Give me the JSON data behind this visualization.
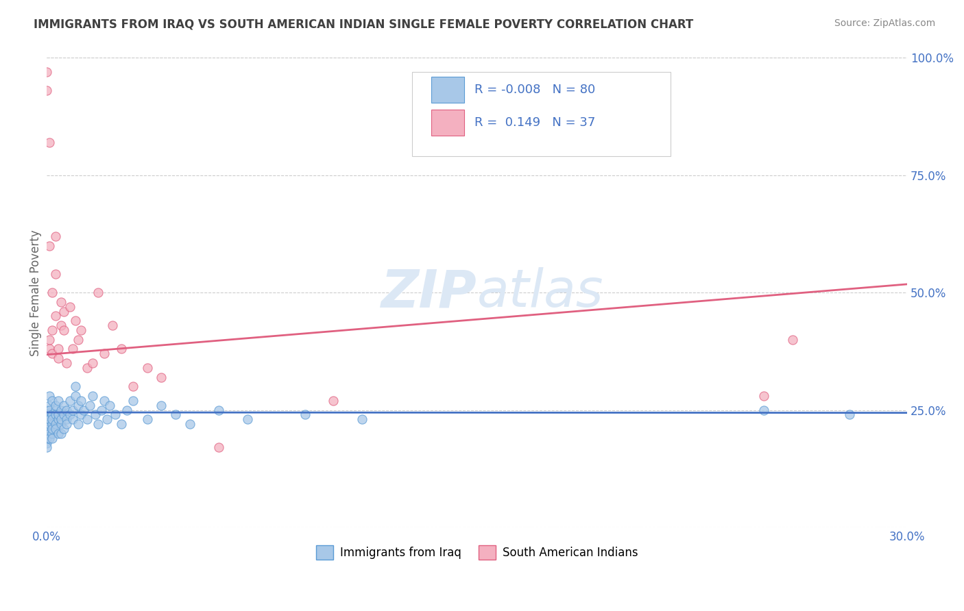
{
  "title": "IMMIGRANTS FROM IRAQ VS SOUTH AMERICAN INDIAN SINGLE FEMALE POVERTY CORRELATION CHART",
  "source": "Source: ZipAtlas.com",
  "ylabel": "Single Female Poverty",
  "xlim": [
    0.0,
    0.3
  ],
  "ylim": [
    0.0,
    1.0
  ],
  "iraq_color": "#a8c8e8",
  "iraq_edge_color": "#5b9bd5",
  "sam_color": "#f4b0c0",
  "sam_edge_color": "#e06080",
  "iraq_line_color": "#4472c4",
  "sam_line_color": "#e06080",
  "background_color": "#ffffff",
  "grid_color": "#cccccc",
  "axis_label_color": "#4472c4",
  "title_color": "#404040",
  "R_iraq": -0.008,
  "N_iraq": 80,
  "R_sam": 0.149,
  "N_sam": 37,
  "intercept_iraq": 0.245,
  "slope_iraq": -0.003,
  "intercept_sam": 0.368,
  "slope_sam": 0.5,
  "legend_label_iraq": "Immigrants from Iraq",
  "legend_label_sam": "South American Indians",
  "iraq_x": [
    0.0,
    0.0,
    0.0,
    0.0,
    0.0,
    0.0,
    0.0,
    0.0,
    0.0,
    0.0,
    0.001,
    0.001,
    0.001,
    0.001,
    0.001,
    0.001,
    0.001,
    0.001,
    0.001,
    0.001,
    0.002,
    0.002,
    0.002,
    0.002,
    0.002,
    0.002,
    0.002,
    0.003,
    0.003,
    0.003,
    0.003,
    0.003,
    0.004,
    0.004,
    0.004,
    0.004,
    0.005,
    0.005,
    0.005,
    0.005,
    0.006,
    0.006,
    0.006,
    0.007,
    0.007,
    0.007,
    0.008,
    0.008,
    0.009,
    0.009,
    0.01,
    0.01,
    0.011,
    0.011,
    0.012,
    0.012,
    0.013,
    0.014,
    0.015,
    0.016,
    0.017,
    0.018,
    0.019,
    0.02,
    0.021,
    0.022,
    0.024,
    0.026,
    0.028,
    0.03,
    0.035,
    0.04,
    0.045,
    0.05,
    0.06,
    0.07,
    0.09,
    0.11,
    0.25,
    0.28
  ],
  "iraq_y": [
    0.24,
    0.22,
    0.21,
    0.23,
    0.2,
    0.19,
    0.25,
    0.18,
    0.22,
    0.17,
    0.24,
    0.23,
    0.21,
    0.2,
    0.26,
    0.22,
    0.19,
    0.25,
    0.28,
    0.23,
    0.22,
    0.24,
    0.2,
    0.27,
    0.21,
    0.23,
    0.19,
    0.25,
    0.22,
    0.24,
    0.21,
    0.26,
    0.23,
    0.2,
    0.27,
    0.24,
    0.22,
    0.25,
    0.2,
    0.23,
    0.24,
    0.21,
    0.26,
    0.23,
    0.25,
    0.22,
    0.24,
    0.27,
    0.23,
    0.25,
    0.3,
    0.28,
    0.26,
    0.22,
    0.24,
    0.27,
    0.25,
    0.23,
    0.26,
    0.28,
    0.24,
    0.22,
    0.25,
    0.27,
    0.23,
    0.26,
    0.24,
    0.22,
    0.25,
    0.27,
    0.23,
    0.26,
    0.24,
    0.22,
    0.25,
    0.23,
    0.24,
    0.23,
    0.25,
    0.24
  ],
  "sam_x": [
    0.0,
    0.0,
    0.001,
    0.001,
    0.001,
    0.001,
    0.002,
    0.002,
    0.002,
    0.003,
    0.003,
    0.003,
    0.004,
    0.004,
    0.005,
    0.005,
    0.006,
    0.006,
    0.007,
    0.008,
    0.009,
    0.01,
    0.011,
    0.012,
    0.014,
    0.016,
    0.018,
    0.02,
    0.023,
    0.026,
    0.03,
    0.035,
    0.04,
    0.06,
    0.1,
    0.25,
    0.26
  ],
  "sam_y": [
    0.97,
    0.93,
    0.82,
    0.6,
    0.38,
    0.4,
    0.42,
    0.37,
    0.5,
    0.45,
    0.54,
    0.62,
    0.38,
    0.36,
    0.48,
    0.43,
    0.46,
    0.42,
    0.35,
    0.47,
    0.38,
    0.44,
    0.4,
    0.42,
    0.34,
    0.35,
    0.5,
    0.37,
    0.43,
    0.38,
    0.3,
    0.34,
    0.32,
    0.17,
    0.27,
    0.28,
    0.4
  ]
}
